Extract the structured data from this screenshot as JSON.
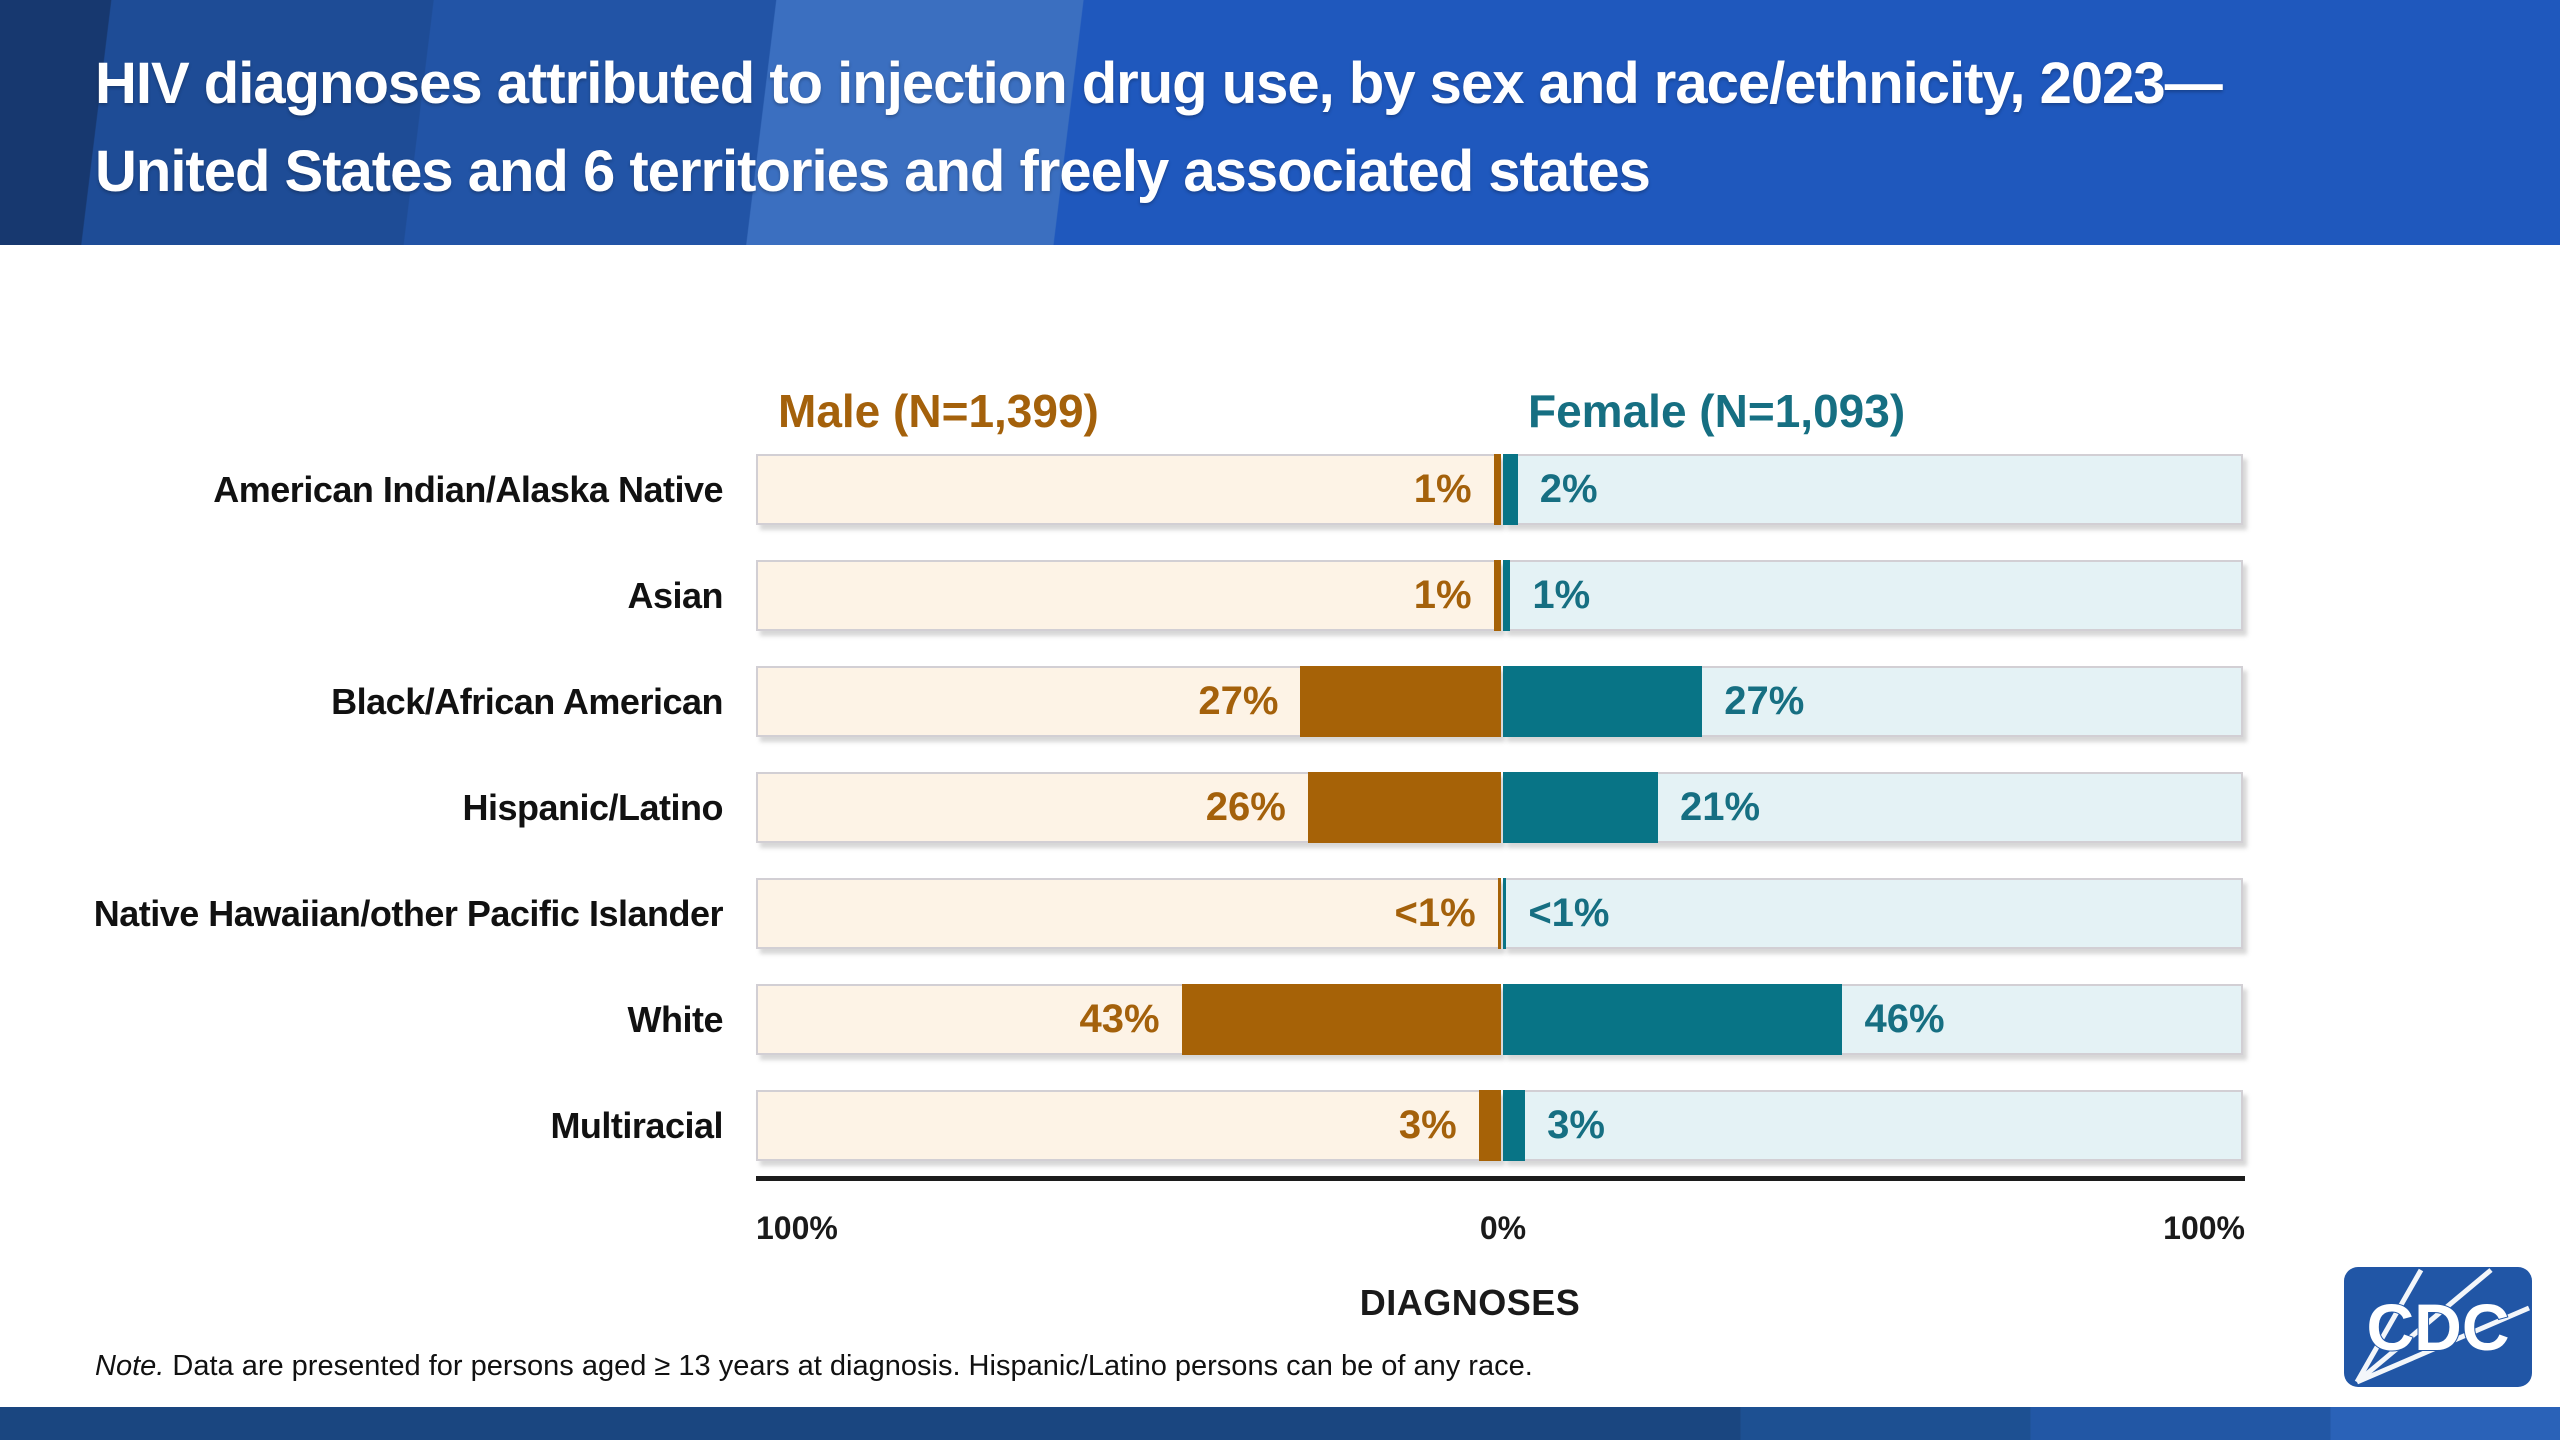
{
  "slide": {
    "title_line1": "HIV diagnoses attributed to injection drug use, by sex and race/ethnicity, 2023—",
    "title_line2": "United States and 6 territories and freely associated states",
    "note_word": "Note.",
    "note_text": " Data are presented for persons aged ≥ 13 years at diagnosis. Hispanic/Latino persons can be of any race.",
    "logo_text": "CDC"
  },
  "chart_data": {
    "type": "bar",
    "variant": "diverging-horizontal-100pct",
    "title": "HIV diagnoses attributed to injection drug use, by sex and race/ethnicity, 2023—United States and 6 territories and freely associated states",
    "xlabel": "DIAGNOSES",
    "axis_ticks": [
      "100%",
      "0%",
      "100%"
    ],
    "axis_range_each_side": [
      0,
      100
    ],
    "grid": false,
    "legend_position": "above-columns",
    "categories": [
      "American Indian/Alaska Native",
      "Asian",
      "Black/African American",
      "Hispanic/Latino",
      "Native Hawaiian/other Pacific Islander",
      "White",
      "Multiracial"
    ],
    "series": [
      {
        "name": "Male (N=1,399)",
        "side": "left",
        "n": 1399,
        "values": [
          1,
          1,
          27,
          26,
          0.45,
          43,
          3
        ],
        "labels": [
          "1%",
          "1%",
          "27%",
          "26%",
          "<1%",
          "43%",
          "3%"
        ]
      },
      {
        "name": "Female (N=1,093)",
        "side": "right",
        "n": 1093,
        "values": [
          2,
          1,
          27,
          21,
          0.45,
          46,
          3
        ],
        "labels": [
          "2%",
          "1%",
          "27%",
          "21%",
          "<1%",
          "46%",
          "3%"
        ]
      }
    ],
    "colors": {
      "male_bar": "#A66207",
      "male_track": "#FDF3E6",
      "male_text": "#A4610B",
      "female_bar": "#087486",
      "female_track": "#E4F2F5",
      "female_text": "#166F82",
      "axis_line": "#1C1C1C",
      "header_blue": "#1F58BD",
      "footer_blue": "#1A4680",
      "logo_blue": "#2156A6"
    }
  }
}
